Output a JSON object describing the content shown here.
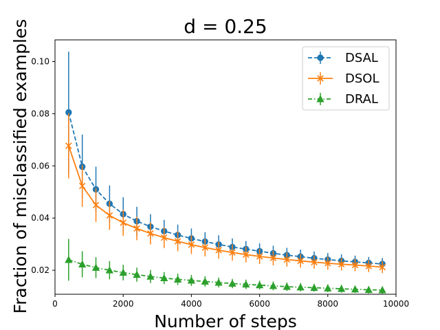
{
  "chart_data": {
    "type": "line",
    "title": "d = 0.25",
    "xlabel": "Number of steps",
    "ylabel": "Fraction of misclassified examples",
    "xlim": [
      0,
      10000
    ],
    "ylim": [
      0.0108,
      0.1083
    ],
    "xticks": [
      0,
      2000,
      4000,
      6000,
      8000,
      10000
    ],
    "xtick_labels": [
      "0",
      "2000",
      "4000",
      "6000",
      "8000",
      "10000"
    ],
    "yticks": [
      0.02,
      0.04,
      0.06,
      0.08,
      0.1
    ],
    "ytick_labels": [
      "0.02",
      "0.04",
      "0.06",
      "0.08",
      "0.10"
    ],
    "grid": false,
    "legend_position": "top-right",
    "x": [
      400,
      800,
      1200,
      1600,
      2000,
      2400,
      2800,
      3200,
      3600,
      4000,
      4400,
      4800,
      5200,
      5600,
      6000,
      6400,
      6800,
      7200,
      7600,
      8000,
      8400,
      8800,
      9200,
      9600
    ],
    "series": [
      {
        "name": "DSAL",
        "color": "#1f77b4",
        "linestyle": "dashed",
        "marker": "circle",
        "values": [
          0.0805,
          0.0597,
          0.051,
          0.0455,
          0.0415,
          0.0388,
          0.0367,
          0.035,
          0.0335,
          0.0322,
          0.031,
          0.0299,
          0.0289,
          0.0281,
          0.0273,
          0.0265,
          0.0258,
          0.0252,
          0.0246,
          0.0241,
          0.0236,
          0.0232,
          0.0228,
          0.0224
        ],
        "errors": [
          0.0233,
          0.0123,
          0.0087,
          0.007,
          0.0065,
          0.0055,
          0.0048,
          0.0043,
          0.004,
          0.0038,
          0.0036,
          0.0035,
          0.0033,
          0.0031,
          0.003,
          0.0029,
          0.0028,
          0.0027,
          0.0026,
          0.0025,
          0.0025,
          0.0024,
          0.0023,
          0.0023
        ]
      },
      {
        "name": "DSOL",
        "color": "#ff7f0e",
        "linestyle": "solid",
        "marker": "x",
        "values": [
          0.0677,
          0.0523,
          0.045,
          0.041,
          0.0382,
          0.036,
          0.0341,
          0.0325,
          0.0311,
          0.0298,
          0.0287,
          0.0277,
          0.0268,
          0.026,
          0.0253,
          0.0247,
          0.0241,
          0.0236,
          0.0231,
          0.0227,
          0.0223,
          0.022,
          0.0216,
          0.0212
        ],
        "errors": [
          0.0125,
          0.008,
          0.0065,
          0.0055,
          0.005,
          0.0045,
          0.0042,
          0.004,
          0.0038,
          0.0036,
          0.0034,
          0.0033,
          0.0031,
          0.003,
          0.0029,
          0.0028,
          0.0027,
          0.0026,
          0.0025,
          0.0025,
          0.0024,
          0.0024,
          0.0023,
          0.0023
        ]
      },
      {
        "name": "DRAL",
        "color": "#2ca02c",
        "linestyle": "dashdot",
        "marker": "triangle",
        "values": [
          0.024,
          0.0223,
          0.021,
          0.02,
          0.0191,
          0.0183,
          0.0176,
          0.017,
          0.0165,
          0.0161,
          0.0157,
          0.0153,
          0.0149,
          0.0146,
          0.0143,
          0.014,
          0.0137,
          0.0135,
          0.0133,
          0.0131,
          0.0129,
          0.0127,
          0.0125,
          0.0124
        ],
        "errors": [
          0.008,
          0.005,
          0.004,
          0.0035,
          0.003,
          0.0027,
          0.0025,
          0.0023,
          0.0022,
          0.0021,
          0.002,
          0.0019,
          0.0018,
          0.0018,
          0.0017,
          0.0017,
          0.0016,
          0.0016,
          0.0015,
          0.0015,
          0.0015,
          0.0014,
          0.0014,
          0.0014
        ]
      }
    ]
  }
}
